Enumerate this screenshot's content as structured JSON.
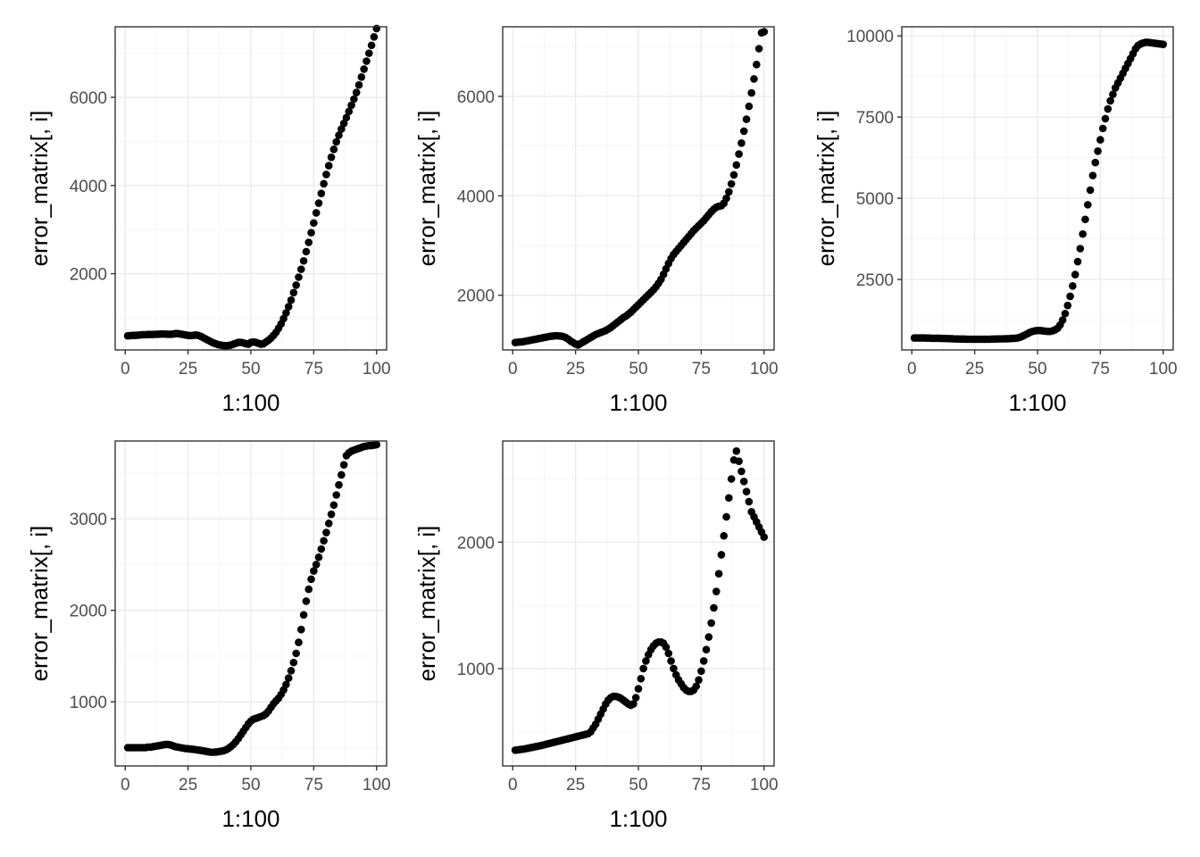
{
  "chart_data": [
    {
      "type": "scatter",
      "xlabel": "1:100",
      "ylabel": "error_matrix[, i]",
      "xlim": [
        0,
        100
      ],
      "ylim": [
        270,
        7600
      ],
      "x_ticks": [
        0,
        25,
        50,
        75,
        100
      ],
      "y_ticks": [
        2000,
        4000,
        6000
      ],
      "grid": true,
      "series": [
        {
          "x": [
            1,
            2,
            3,
            4,
            5,
            6,
            7,
            8,
            9,
            10,
            11,
            12,
            13,
            14,
            15,
            16,
            17,
            18,
            19,
            20,
            21,
            22,
            23,
            24,
            25,
            26,
            27,
            28,
            29,
            30,
            31,
            32,
            33,
            34,
            35,
            36,
            37,
            38,
            39,
            40,
            41,
            42,
            43,
            44,
            45,
            46,
            47,
            48,
            49,
            50,
            51,
            52,
            53,
            54,
            55,
            56,
            57,
            58,
            59,
            60,
            61,
            62,
            63,
            64,
            65,
            66,
            67,
            68,
            69,
            70,
            71,
            72,
            73,
            74,
            75,
            76,
            77,
            78,
            79,
            80,
            81,
            82,
            83,
            84,
            85,
            86,
            87,
            88,
            89,
            90,
            91,
            92,
            93,
            94,
            95,
            96,
            97,
            98,
            99,
            100
          ],
          "y": [
            590,
            595,
            600,
            600,
            605,
            610,
            615,
            615,
            620,
            620,
            620,
            625,
            625,
            630,
            630,
            630,
            625,
            625,
            630,
            640,
            640,
            630,
            620,
            610,
            600,
            595,
            600,
            610,
            600,
            580,
            550,
            520,
            490,
            460,
            430,
            410,
            390,
            380,
            370,
            365,
            370,
            380,
            400,
            420,
            440,
            440,
            430,
            410,
            400,
            440,
            450,
            440,
            420,
            400,
            410,
            450,
            490,
            540,
            600,
            670,
            760,
            860,
            980,
            1110,
            1250,
            1400,
            1570,
            1740,
            1920,
            2100,
            2290,
            2500,
            2710,
            2930,
            3150,
            3380,
            3600,
            3820,
            4040,
            4250,
            4450,
            4640,
            4820,
            4990,
            5140,
            5280,
            5410,
            5540,
            5680,
            5820,
            5960,
            6110,
            6280,
            6460,
            6640,
            6820,
            7000,
            7180,
            7370,
            7560
          ]
        }
      ]
    },
    {
      "type": "scatter",
      "xlabel": "1:100",
      "ylabel": "error_matrix[, i]",
      "xlim": [
        0,
        100
      ],
      "ylim": [
        900,
        7400
      ],
      "x_ticks": [
        0,
        25,
        50,
        75,
        100
      ],
      "y_ticks": [
        2000,
        4000,
        6000
      ],
      "grid": true,
      "series": [
        {
          "x": [
            1,
            2,
            3,
            4,
            5,
            6,
            7,
            8,
            9,
            10,
            11,
            12,
            13,
            14,
            15,
            16,
            17,
            18,
            19,
            20,
            21,
            22,
            23,
            24,
            25,
            26,
            27,
            28,
            29,
            30,
            31,
            32,
            33,
            34,
            35,
            36,
            37,
            38,
            39,
            40,
            41,
            42,
            43,
            44,
            45,
            46,
            47,
            48,
            49,
            50,
            51,
            52,
            53,
            54,
            55,
            56,
            57,
            58,
            59,
            60,
            61,
            62,
            63,
            64,
            65,
            66,
            67,
            68,
            69,
            70,
            71,
            72,
            73,
            74,
            75,
            76,
            77,
            78,
            79,
            80,
            81,
            82,
            83,
            84,
            85,
            86,
            87,
            88,
            89,
            90,
            91,
            92,
            93,
            94,
            95,
            96,
            97,
            98,
            99,
            100
          ],
          "y": [
            1050,
            1055,
            1060,
            1065,
            1075,
            1085,
            1095,
            1105,
            1115,
            1125,
            1135,
            1145,
            1155,
            1165,
            1175,
            1180,
            1185,
            1185,
            1180,
            1170,
            1150,
            1120,
            1080,
            1050,
            1020,
            1000,
            1030,
            1060,
            1090,
            1120,
            1150,
            1180,
            1210,
            1230,
            1250,
            1270,
            1290,
            1320,
            1350,
            1390,
            1430,
            1470,
            1510,
            1550,
            1580,
            1620,
            1660,
            1710,
            1760,
            1810,
            1860,
            1910,
            1960,
            2010,
            2060,
            2110,
            2170,
            2240,
            2320,
            2420,
            2530,
            2640,
            2740,
            2820,
            2880,
            2940,
            3000,
            3060,
            3120,
            3180,
            3240,
            3300,
            3350,
            3400,
            3450,
            3500,
            3560,
            3620,
            3680,
            3730,
            3770,
            3790,
            3800,
            3850,
            3950,
            4080,
            4240,
            4420,
            4620,
            4840,
            5060,
            5300,
            5540,
            5800,
            6070,
            6350,
            6640,
            6960,
            7280,
            7300
          ]
        }
      ]
    },
    {
      "type": "scatter",
      "xlabel": "1:100",
      "ylabel": "error_matrix[, i]",
      "xlim": [
        0,
        100
      ],
      "ylim": [
        330,
        10280
      ],
      "x_ticks": [
        0,
        25,
        50,
        75,
        100
      ],
      "y_ticks": [
        2500,
        5000,
        7500,
        10000
      ],
      "grid": true,
      "series": [
        {
          "x": [
            1,
            2,
            3,
            4,
            5,
            6,
            7,
            8,
            9,
            10,
            11,
            12,
            13,
            14,
            15,
            16,
            17,
            18,
            19,
            20,
            21,
            22,
            23,
            24,
            25,
            26,
            27,
            28,
            29,
            30,
            31,
            32,
            33,
            34,
            35,
            36,
            37,
            38,
            39,
            40,
            41,
            42,
            43,
            44,
            45,
            46,
            47,
            48,
            49,
            50,
            51,
            52,
            53,
            54,
            55,
            56,
            57,
            58,
            59,
            60,
            61,
            62,
            63,
            64,
            65,
            66,
            67,
            68,
            69,
            70,
            71,
            72,
            73,
            74,
            75,
            76,
            77,
            78,
            79,
            80,
            81,
            82,
            83,
            84,
            85,
            86,
            87,
            88,
            89,
            90,
            91,
            92,
            93,
            94,
            95,
            96,
            97,
            98,
            99,
            100
          ],
          "y": [
            700,
            700,
            700,
            700,
            700,
            695,
            695,
            690,
            690,
            690,
            690,
            685,
            685,
            680,
            680,
            675,
            670,
            670,
            665,
            665,
            665,
            660,
            660,
            660,
            660,
            660,
            660,
            660,
            660,
            660,
            660,
            665,
            665,
            670,
            670,
            670,
            675,
            675,
            680,
            685,
            690,
            700,
            720,
            750,
            790,
            830,
            870,
            900,
            920,
            930,
            930,
            920,
            910,
            900,
            900,
            920,
            950,
            1000,
            1100,
            1250,
            1450,
            1700,
            1980,
            2300,
            2650,
            3050,
            3450,
            3900,
            4350,
            4800,
            5250,
            5700,
            6100,
            6450,
            6800,
            7150,
            7450,
            7750,
            8000,
            8200,
            8400,
            8550,
            8700,
            8850,
            9000,
            9150,
            9300,
            9450,
            9600,
            9700,
            9750,
            9780,
            9800,
            9800,
            9790,
            9780,
            9770,
            9760,
            9750,
            9740
          ]
        }
      ]
    },
    {
      "type": "scatter",
      "xlabel": "1:100",
      "ylabel": "error_matrix[, i]",
      "xlim": [
        0,
        100
      ],
      "ylim": [
        300,
        3850
      ],
      "x_ticks": [
        0,
        25,
        50,
        75,
        100
      ],
      "y_ticks": [
        1000,
        2000,
        3000
      ],
      "grid": true,
      "series": [
        {
          "x": [
            1,
            2,
            3,
            4,
            5,
            6,
            7,
            8,
            9,
            10,
            11,
            12,
            13,
            14,
            15,
            16,
            17,
            18,
            19,
            20,
            21,
            22,
            23,
            24,
            25,
            26,
            27,
            28,
            29,
            30,
            31,
            32,
            33,
            34,
            35,
            36,
            37,
            38,
            39,
            40,
            41,
            42,
            43,
            44,
            45,
            46,
            47,
            48,
            49,
            50,
            51,
            52,
            53,
            54,
            55,
            56,
            57,
            58,
            59,
            60,
            61,
            62,
            63,
            64,
            65,
            66,
            67,
            68,
            69,
            70,
            71,
            72,
            73,
            74,
            75,
            76,
            77,
            78,
            79,
            80,
            81,
            82,
            83,
            84,
            85,
            86,
            87,
            88,
            89,
            90,
            91,
            92,
            93,
            94,
            95,
            96,
            97,
            98,
            99,
            100
          ],
          "y": [
            500,
            500,
            500,
            500,
            500,
            500,
            500,
            500,
            505,
            505,
            510,
            515,
            520,
            525,
            530,
            535,
            535,
            530,
            520,
            510,
            505,
            500,
            495,
            490,
            488,
            485,
            482,
            478,
            474,
            470,
            465,
            460,
            455,
            450,
            450,
            452,
            455,
            460,
            465,
            475,
            490,
            510,
            535,
            565,
            600,
            640,
            680,
            720,
            760,
            790,
            810,
            820,
            830,
            840,
            850,
            870,
            900,
            940,
            980,
            1010,
            1040,
            1080,
            1130,
            1190,
            1260,
            1340,
            1430,
            1530,
            1650,
            1790,
            1950,
            2100,
            2230,
            2340,
            2430,
            2500,
            2580,
            2670,
            2760,
            2850,
            2950,
            3050,
            3150,
            3260,
            3370,
            3480,
            3590,
            3690,
            3720,
            3740,
            3750,
            3760,
            3770,
            3780,
            3790,
            3795,
            3800,
            3800,
            3805,
            3810
          ]
        }
      ]
    },
    {
      "type": "scatter",
      "xlabel": "1:100",
      "ylabel": "error_matrix[, i]",
      "xlim": [
        0,
        100
      ],
      "ylim": [
        230,
        2800
      ],
      "x_ticks": [
        0,
        25,
        50,
        75,
        100
      ],
      "y_ticks": [
        1000,
        2000
      ],
      "grid": true,
      "series": [
        {
          "x": [
            1,
            2,
            3,
            4,
            5,
            6,
            7,
            8,
            9,
            10,
            11,
            12,
            13,
            14,
            15,
            16,
            17,
            18,
            19,
            20,
            21,
            22,
            23,
            24,
            25,
            26,
            27,
            28,
            29,
            30,
            31,
            32,
            33,
            34,
            35,
            36,
            37,
            38,
            39,
            40,
            41,
            42,
            43,
            44,
            45,
            46,
            47,
            48,
            49,
            50,
            51,
            52,
            53,
            54,
            55,
            56,
            57,
            58,
            59,
            60,
            61,
            62,
            63,
            64,
            65,
            66,
            67,
            68,
            69,
            70,
            71,
            72,
            73,
            74,
            75,
            76,
            77,
            78,
            79,
            80,
            81,
            82,
            83,
            84,
            85,
            86,
            87,
            88,
            89,
            90,
            91,
            92,
            93,
            94,
            95,
            96,
            97,
            98,
            99,
            100
          ],
          "y": [
            355,
            357,
            360,
            363,
            366,
            370,
            374,
            378,
            382,
            386,
            390,
            395,
            400,
            405,
            410,
            415,
            420,
            425,
            430,
            435,
            440,
            445,
            450,
            455,
            460,
            465,
            470,
            475,
            480,
            485,
            500,
            530,
            560,
            600,
            640,
            680,
            720,
            750,
            770,
            780,
            780,
            775,
            765,
            750,
            735,
            720,
            710,
            720,
            770,
            840,
            920,
            1000,
            1060,
            1110,
            1150,
            1180,
            1200,
            1210,
            1210,
            1200,
            1170,
            1120,
            1060,
            1000,
            950,
            910,
            880,
            850,
            830,
            820,
            820,
            830,
            860,
            910,
            980,
            1060,
            1150,
            1250,
            1360,
            1480,
            1610,
            1750,
            1900,
            2050,
            2200,
            2350,
            2500,
            2650,
            2720,
            2640,
            2560,
            2480,
            2400,
            2320,
            2240,
            2200,
            2160,
            2120,
            2080,
            2040
          ]
        }
      ]
    }
  ]
}
